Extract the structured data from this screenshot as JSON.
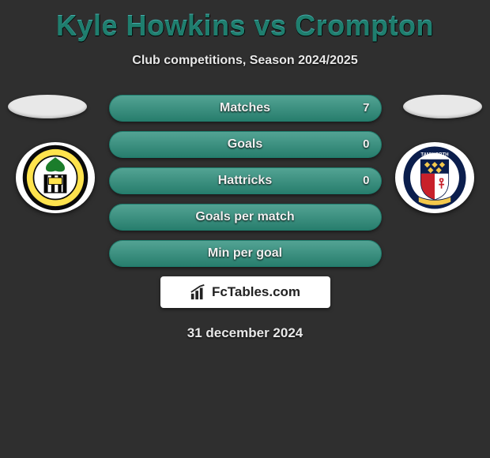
{
  "title": "Kyle Howkins vs Crompton",
  "subtitle": "Club competitions, Season 2024/2025",
  "date": "31 december 2024",
  "brand": "FcTables.com",
  "colors": {
    "title": "#1f7e6e",
    "bar_border": "#1f7e6e",
    "bar_bg": "#246b5f",
    "bar_fill_left": "#2d8f7c",
    "bar_fill_right": "#2d8f7c",
    "background": "#2f2f2f"
  },
  "bars": [
    {
      "label": "Matches",
      "left": "",
      "right": "7",
      "left_pct": 0,
      "right_pct": 100
    },
    {
      "label": "Goals",
      "left": "",
      "right": "0",
      "left_pct": 50,
      "right_pct": 50
    },
    {
      "label": "Hattricks",
      "left": "",
      "right": "0",
      "left_pct": 50,
      "right_pct": 50
    },
    {
      "label": "Goals per match",
      "left": "",
      "right": "",
      "left_pct": 50,
      "right_pct": 50
    },
    {
      "label": "Min per goal",
      "left": "",
      "right": "",
      "left_pct": 50,
      "right_pct": 50
    }
  ],
  "crest_left": {
    "name": "Solihull Moors FC",
    "ring": "#0a0a0a",
    "band": "#ffe34d",
    "inner_bg": "#ffffff",
    "tree": "#1b7d2b",
    "stripes": [
      "#000000",
      "#ffffff"
    ]
  },
  "crest_right": {
    "name": "Tamworth Football Club",
    "ring": "#0b1e4d",
    "upper": "#0b1e4d",
    "diamonds": "#f3c84b",
    "lower_l": "#c8202a",
    "lower_r": "#ffffff",
    "fleur": "#c8202a",
    "ribbon": "#f3c84b"
  }
}
